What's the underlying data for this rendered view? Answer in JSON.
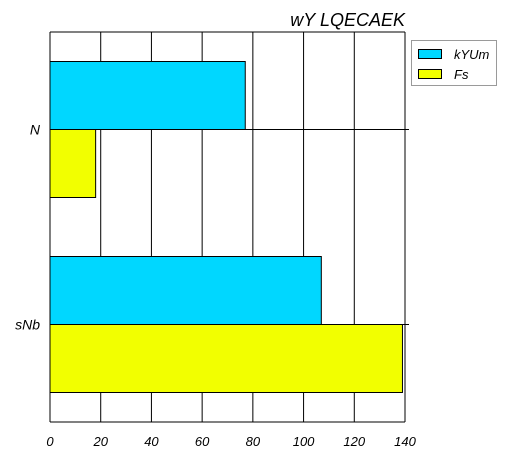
{
  "chart_data": {
    "type": "bar",
    "orientation": "horizontal",
    "title": "wY LQECAEK",
    "categories": [
      "N",
      "sNb"
    ],
    "series": [
      {
        "name": "kYUm",
        "color": "#00d7ff",
        "values": [
          77,
          107
        ]
      },
      {
        "name": "Fs",
        "color": "#f2ff00",
        "values": [
          18,
          139
        ]
      }
    ],
    "xlim": [
      0,
      140
    ],
    "xticks": [
      "0",
      "20",
      "40",
      "60",
      "80",
      "100",
      "120",
      "140"
    ],
    "grid": true,
    "legend": "top-right"
  }
}
